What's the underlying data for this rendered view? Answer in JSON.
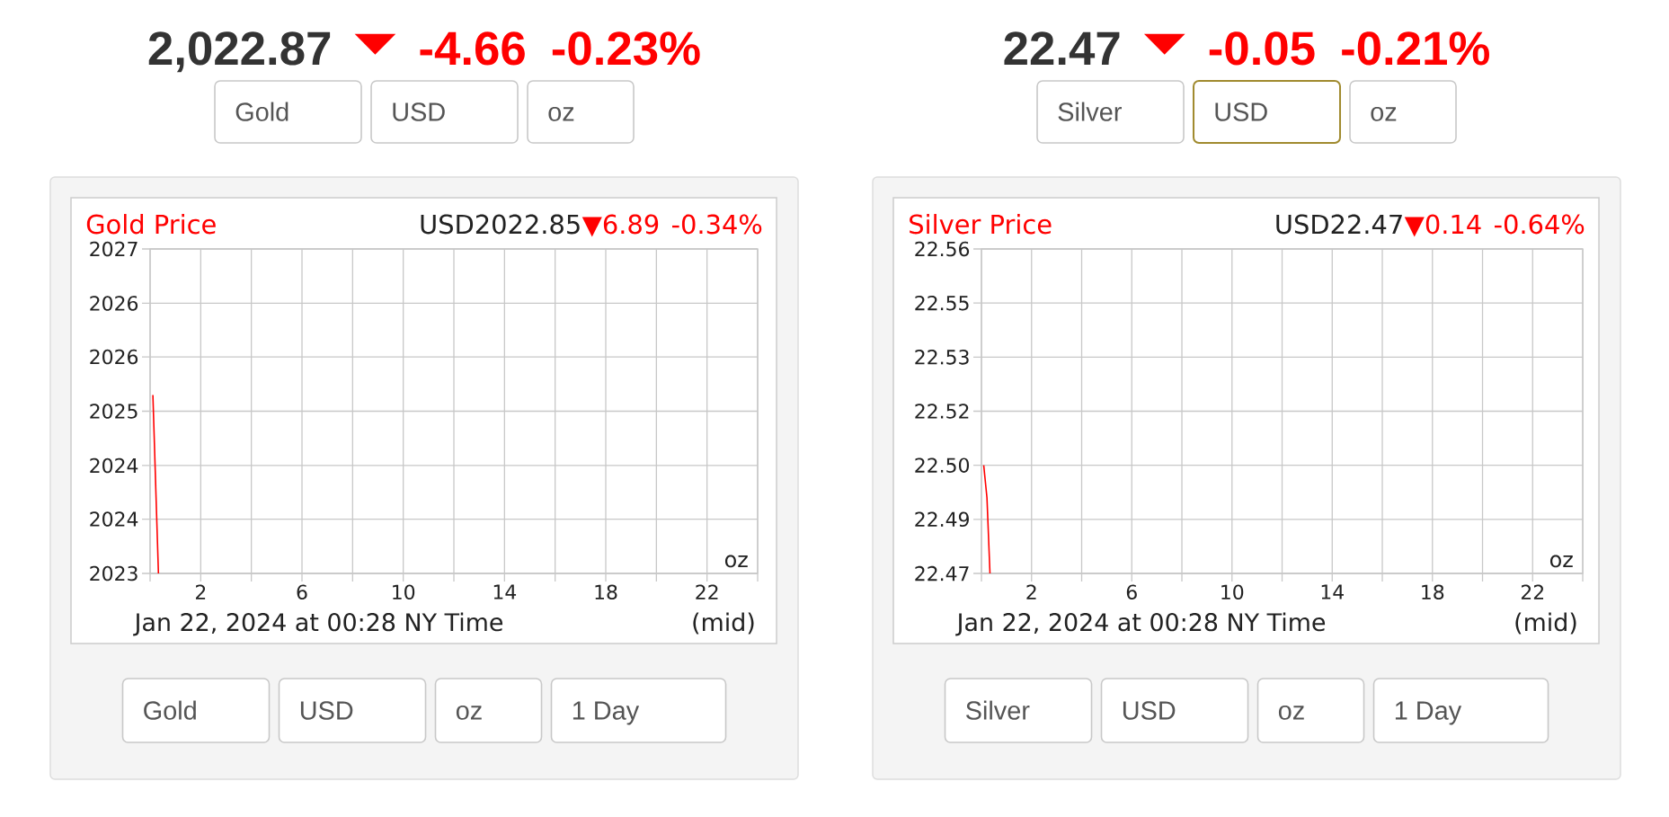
{
  "chart_data": [
    {
      "type": "line",
      "title": "Gold Price",
      "xlabel": "Jan 22, 2024 at 00:28 NY Time",
      "x": [
        0.11,
        0.33
      ],
      "values": [
        2025.2,
        2023
      ],
      "color": "#ff0000",
      "xlim": [
        0,
        24
      ],
      "xticks": [
        {
          "value": 0,
          "label": null
        },
        2,
        {
          "value": 4,
          "label": null
        },
        6,
        {
          "value": 8,
          "label": null
        },
        10,
        {
          "value": 12,
          "label": null
        },
        14,
        {
          "value": 16,
          "label": null
        },
        18,
        {
          "value": 20,
          "label": null
        },
        22,
        {
          "value": 24,
          "label": null
        }
      ],
      "ylim": [
        2023,
        2027
      ],
      "yticks": [
        2023,
        {
          "value": 2023.67,
          "label": "2024"
        },
        {
          "value": 2024.33,
          "label": "2024"
        },
        2025,
        {
          "value": 2025.67,
          "label": "2026"
        },
        {
          "value": 2026.33,
          "label": "2026"
        },
        2027
      ],
      "grid": true,
      "annotations": [
        "2,022.87",
        "▼",
        "-4.66",
        "-0.23%",
        "Gold",
        "USD",
        "oz",
        "USD2022.85",
        "▼6.89",
        "-0.34%",
        "oz",
        "(mid)",
        "Gold",
        "USD",
        "oz",
        "1 Day"
      ]
    },
    {
      "type": "line",
      "title": "Silver Price",
      "xlabel": "Jan 22, 2024 at 00:28 NY Time",
      "x": [
        0.09,
        0.22,
        0.34
      ],
      "values": [
        22.5,
        22.491,
        22.47
      ],
      "color": "#ff0000",
      "xlim": [
        0,
        24
      ],
      "xticks": [
        {
          "value": 0,
          "label": null
        },
        2,
        {
          "value": 4,
          "label": null
        },
        6,
        {
          "value": 8,
          "label": null
        },
        10,
        {
          "value": 12,
          "label": null
        },
        14,
        {
          "value": 16,
          "label": null
        },
        18,
        {
          "value": 20,
          "label": null
        },
        22,
        {
          "value": 24,
          "label": null
        }
      ],
      "ylim": [
        22.47,
        22.56
      ],
      "yticks": [
        22.47,
        {
          "value": 22.485,
          "label": "22.49"
        },
        {
          "value": 22.5,
          "label": "22.50"
        },
        {
          "value": 22.515,
          "label": "22.52"
        },
        22.53,
        {
          "value": 22.545,
          "label": "22.55"
        },
        22.56
      ],
      "grid": true,
      "annotations": [
        "22.47",
        "▼",
        "-0.05",
        "-0.21%",
        "Silver",
        "USD",
        "oz",
        "USD22.47",
        "▼0.14",
        "-0.64%",
        "oz",
        "(mid)",
        "Silver",
        "USD",
        "oz",
        "1 Day"
      ]
    }
  ]
}
